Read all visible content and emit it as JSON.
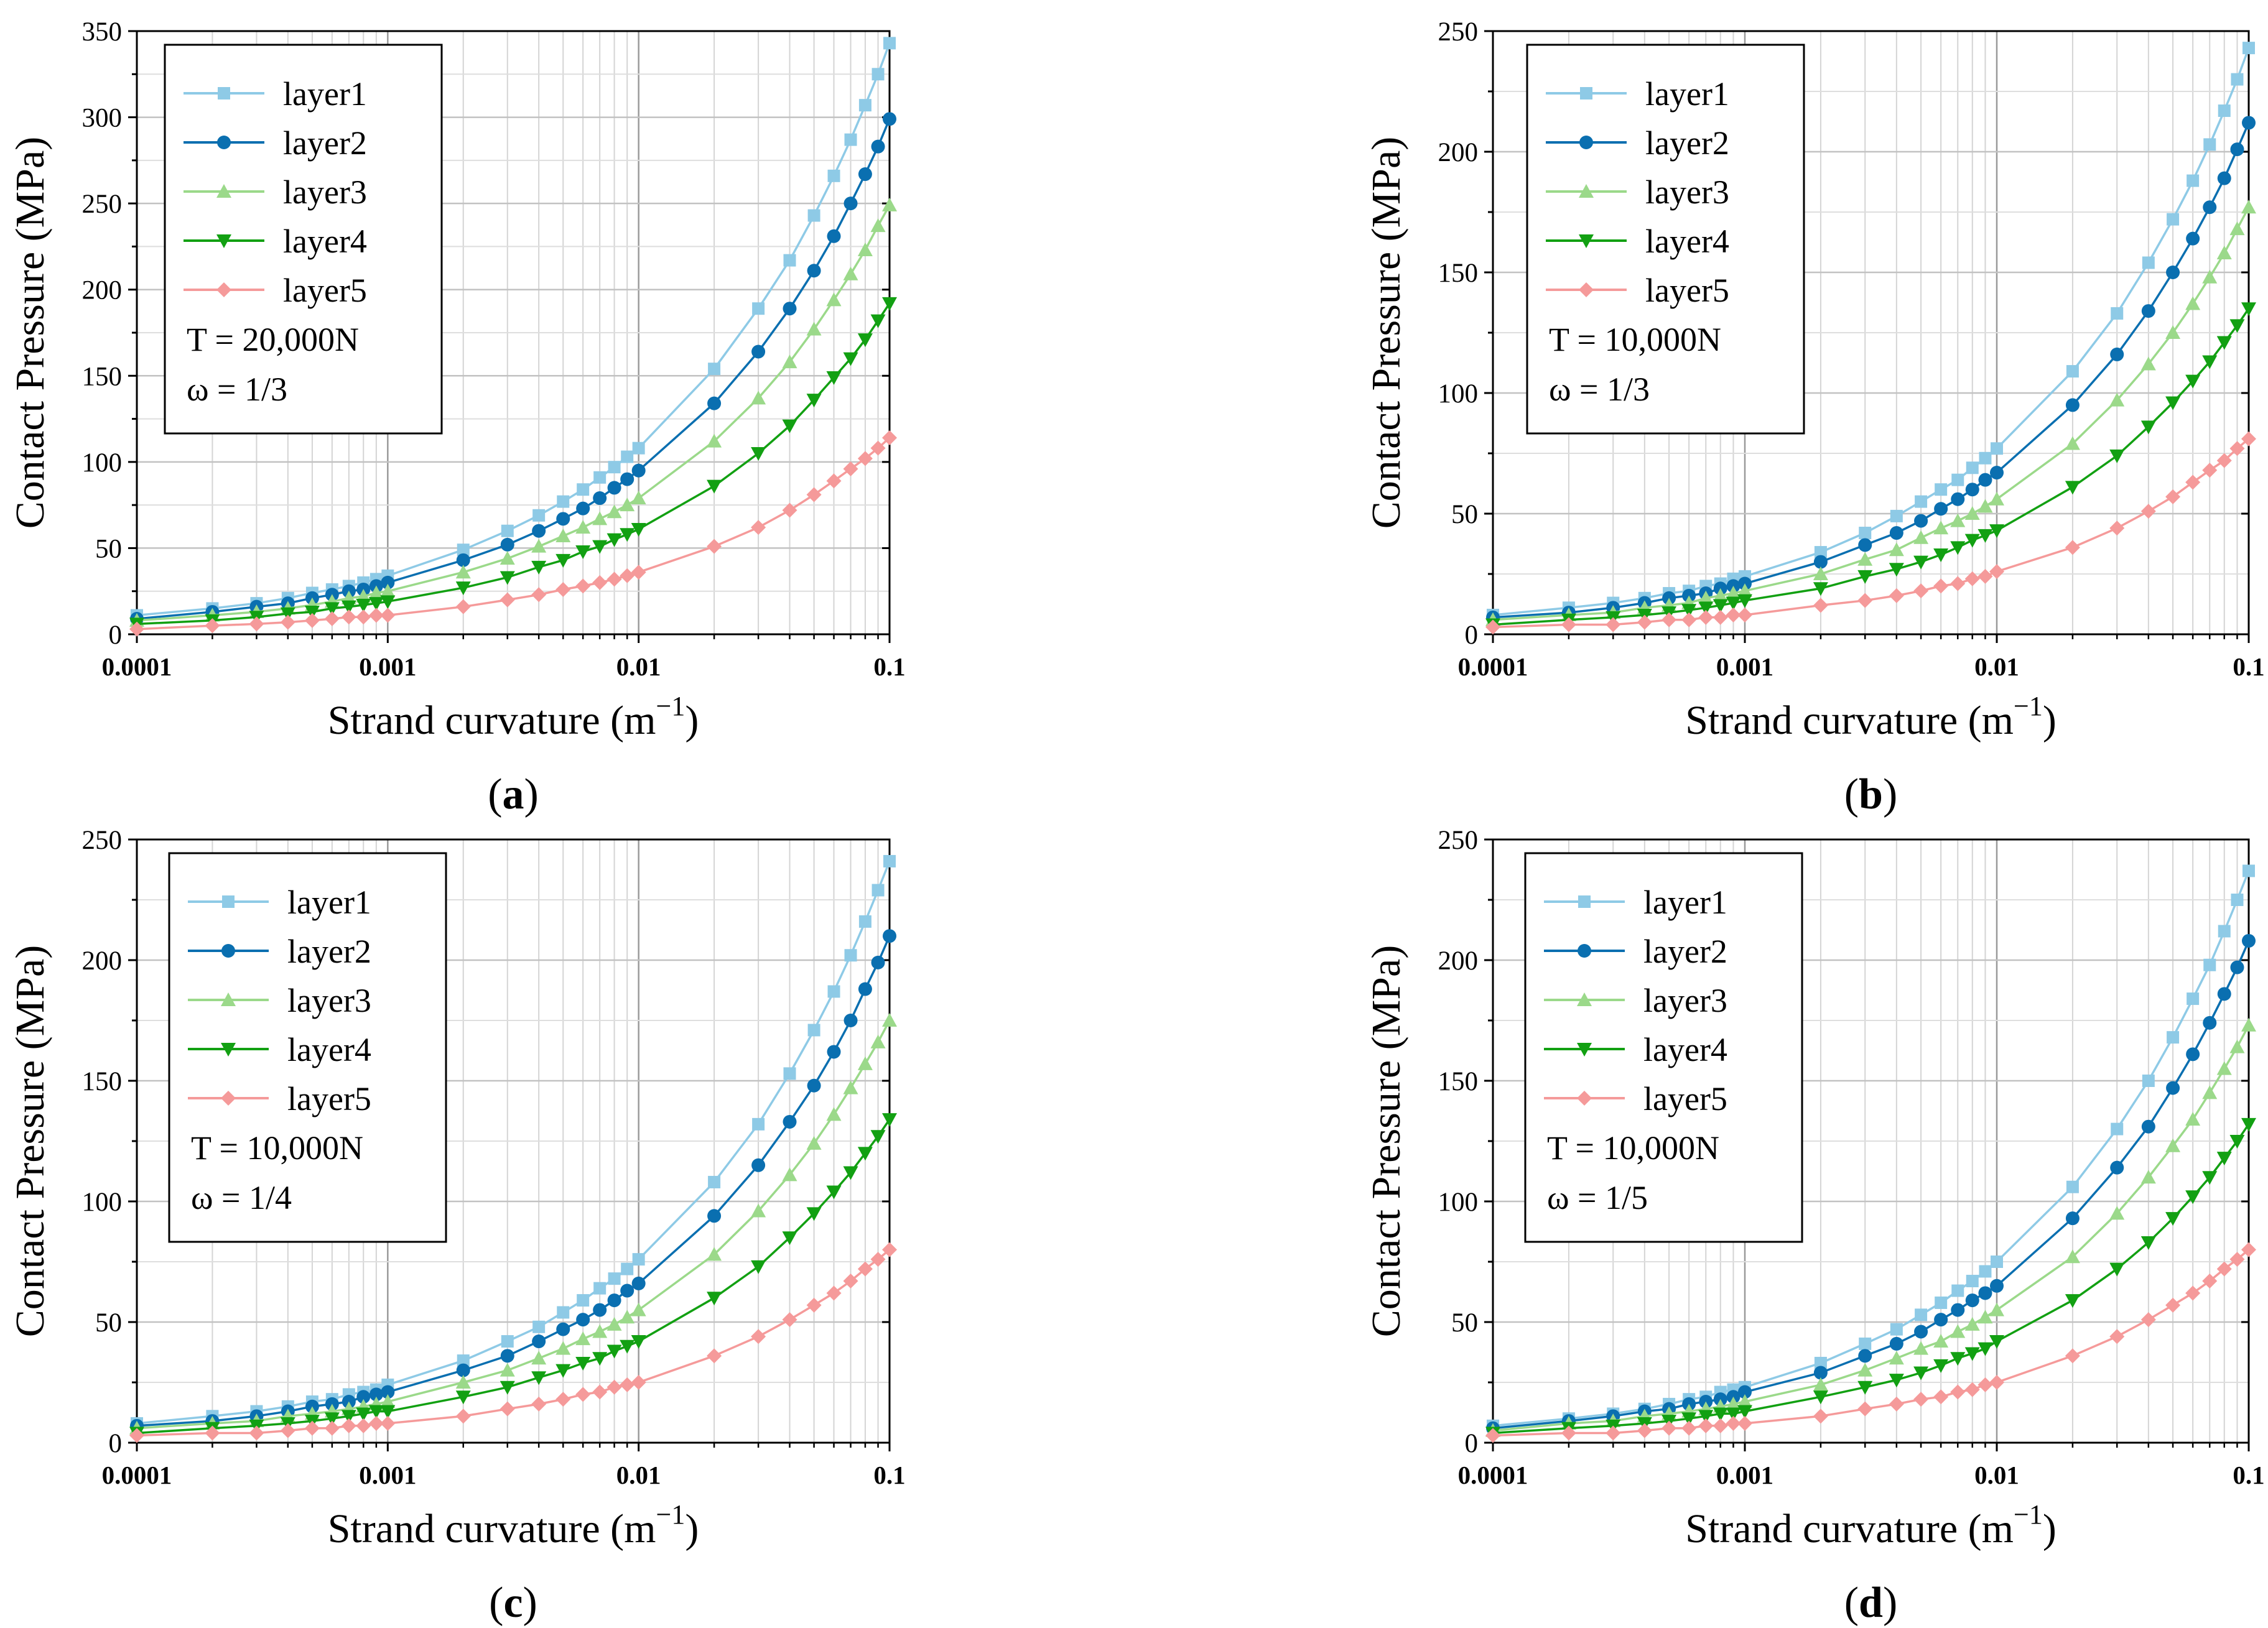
{
  "colors": {
    "layer1": "#8ecae6",
    "layer2": "#0a6fb0",
    "layer3": "#9bd98a",
    "layer4": "#12a012",
    "layer5": "#f59a9a"
  },
  "x_labels": [
    "0.0001",
    "0.001",
    "0.01",
    "0.1"
  ],
  "xlabel_text": "Strand curvature (m",
  "xlabel_sup": "−1",
  "xlabel_close": ")",
  "chart_data": [
    {
      "type": "line",
      "panel": "a",
      "xscale": "log",
      "xlim": [
        0.0001,
        0.1
      ],
      "ylim": [
        0,
        350
      ],
      "yticks": [
        0,
        50,
        100,
        150,
        200,
        250,
        300,
        350
      ],
      "ylabel": "Contact Pressure (MPa)",
      "annotations": [
        "T = 20,000N",
        "ω = 1/3"
      ],
      "x": [
        0.0001,
        0.0002,
        0.0003,
        0.0004,
        0.0005,
        0.0006,
        0.0007,
        0.0008,
        0.0009,
        0.001,
        0.002,
        0.003,
        0.004,
        0.005,
        0.006,
        0.007,
        0.008,
        0.009,
        0.01,
        0.02,
        0.03,
        0.04,
        0.05,
        0.06,
        0.07,
        0.08,
        0.09,
        0.1
      ],
      "series": [
        {
          "name": "layer1",
          "marker": "square",
          "values": [
            11,
            15,
            18,
            21,
            24,
            26,
            28,
            30,
            32,
            34,
            49,
            60,
            69,
            77,
            84,
            91,
            97,
            103,
            108,
            154,
            189,
            217,
            243,
            266,
            287,
            307,
            325,
            343
          ]
        },
        {
          "name": "layer2",
          "marker": "circle",
          "values": [
            9,
            13,
            16,
            18,
            21,
            23,
            25,
            26,
            28,
            30,
            43,
            52,
            60,
            67,
            73,
            79,
            85,
            90,
            95,
            134,
            164,
            189,
            211,
            231,
            250,
            267,
            283,
            299
          ]
        },
        {
          "name": "layer3",
          "marker": "triangle-up",
          "values": [
            8,
            11,
            13,
            15,
            17,
            19,
            21,
            22,
            24,
            25,
            36,
            44,
            51,
            57,
            62,
            67,
            71,
            75,
            79,
            112,
            137,
            158,
            177,
            194,
            209,
            223,
            237,
            249
          ]
        },
        {
          "name": "layer4",
          "marker": "triangle-down",
          "values": [
            6,
            8,
            10,
            12,
            13,
            15,
            16,
            17,
            18,
            19,
            27,
            33,
            39,
            43,
            48,
            51,
            55,
            58,
            61,
            86,
            105,
            121,
            136,
            149,
            160,
            171,
            182,
            192
          ]
        },
        {
          "name": "layer5",
          "marker": "diamond",
          "values": [
            3,
            5,
            6,
            7,
            8,
            9,
            10,
            10,
            11,
            11,
            16,
            20,
            23,
            26,
            28,
            30,
            32,
            34,
            36,
            51,
            62,
            72,
            81,
            89,
            96,
            102,
            108,
            114
          ]
        }
      ]
    },
    {
      "type": "line",
      "panel": "b",
      "xscale": "log",
      "xlim": [
        0.0001,
        0.1
      ],
      "ylim": [
        0,
        250
      ],
      "yticks": [
        0,
        50,
        100,
        150,
        200,
        250
      ],
      "ylabel": "Contact Pressure (MPa)",
      "annotations": [
        "T = 10,000N",
        "ω = 1/3"
      ],
      "x": [
        0.0001,
        0.0002,
        0.0003,
        0.0004,
        0.0005,
        0.0006,
        0.0007,
        0.0008,
        0.0009,
        0.001,
        0.002,
        0.003,
        0.004,
        0.005,
        0.006,
        0.007,
        0.008,
        0.009,
        0.01,
        0.02,
        0.03,
        0.04,
        0.05,
        0.06,
        0.07,
        0.08,
        0.09,
        0.1
      ],
      "series": [
        {
          "name": "layer1",
          "marker": "square",
          "values": [
            8,
            11,
            13,
            15,
            17,
            18,
            20,
            21,
            23,
            24,
            34,
            42,
            49,
            55,
            60,
            64,
            69,
            73,
            77,
            109,
            133,
            154,
            172,
            188,
            203,
            217,
            230,
            243
          ]
        },
        {
          "name": "layer2",
          "marker": "circle",
          "values": [
            7,
            9,
            11,
            13,
            15,
            16,
            17,
            19,
            20,
            21,
            30,
            37,
            42,
            47,
            52,
            56,
            60,
            64,
            67,
            95,
            116,
            134,
            150,
            164,
            177,
            189,
            201,
            212
          ]
        },
        {
          "name": "layer3",
          "marker": "triangle-up",
          "values": [
            6,
            8,
            9,
            11,
            12,
            13,
            15,
            16,
            17,
            18,
            25,
            31,
            35,
            40,
            44,
            47,
            50,
            53,
            56,
            79,
            97,
            112,
            125,
            137,
            148,
            158,
            168,
            177
          ]
        },
        {
          "name": "layer4",
          "marker": "triangle-down",
          "values": [
            4,
            6,
            7,
            8,
            9,
            10,
            11,
            12,
            13,
            14,
            19,
            24,
            27,
            30,
            33,
            36,
            39,
            41,
            43,
            61,
            74,
            86,
            96,
            105,
            113,
            121,
            128,
            135
          ]
        },
        {
          "name": "layer5",
          "marker": "diamond",
          "values": [
            3,
            4,
            4,
            5,
            6,
            6,
            7,
            7,
            8,
            8,
            12,
            14,
            16,
            18,
            20,
            21,
            23,
            24,
            26,
            36,
            44,
            51,
            57,
            63,
            68,
            72,
            77,
            81
          ]
        }
      ]
    },
    {
      "type": "line",
      "panel": "c",
      "xscale": "log",
      "xlim": [
        0.0001,
        0.1
      ],
      "ylim": [
        0,
        250
      ],
      "yticks": [
        0,
        50,
        100,
        150,
        200,
        250
      ],
      "ylabel": "Contact Pressure (MPa)",
      "annotations": [
        "T = 10,000N",
        "ω = 1/4"
      ],
      "x": [
        0.0001,
        0.0002,
        0.0003,
        0.0004,
        0.0005,
        0.0006,
        0.0007,
        0.0008,
        0.0009,
        0.001,
        0.002,
        0.003,
        0.004,
        0.005,
        0.006,
        0.007,
        0.008,
        0.009,
        0.01,
        0.02,
        0.03,
        0.04,
        0.05,
        0.06,
        0.07,
        0.08,
        0.09,
        0.1
      ],
      "series": [
        {
          "name": "layer1",
          "marker": "square",
          "values": [
            8,
            11,
            13,
            15,
            17,
            18,
            20,
            21,
            22,
            24,
            34,
            42,
            48,
            54,
            59,
            64,
            68,
            72,
            76,
            108,
            132,
            153,
            171,
            187,
            202,
            216,
            229,
            241
          ]
        },
        {
          "name": "layer2",
          "marker": "circle",
          "values": [
            7,
            9,
            11,
            13,
            15,
            16,
            17,
            19,
            20,
            21,
            30,
            36,
            42,
            47,
            51,
            55,
            59,
            63,
            66,
            94,
            115,
            133,
            148,
            162,
            175,
            188,
            199,
            210
          ]
        },
        {
          "name": "layer3",
          "marker": "triangle-up",
          "values": [
            6,
            8,
            9,
            11,
            12,
            13,
            14,
            15,
            16,
            17,
            25,
            30,
            35,
            39,
            43,
            46,
            49,
            52,
            55,
            78,
            96,
            111,
            124,
            136,
            147,
            157,
            166,
            175
          ]
        },
        {
          "name": "layer4",
          "marker": "triangle-down",
          "values": [
            4,
            6,
            7,
            8,
            9,
            10,
            11,
            12,
            13,
            13,
            19,
            23,
            27,
            30,
            33,
            35,
            38,
            40,
            42,
            60,
            73,
            85,
            95,
            104,
            112,
            120,
            127,
            134
          ]
        },
        {
          "name": "layer5",
          "marker": "diamond",
          "values": [
            3,
            4,
            4,
            5,
            6,
            6,
            7,
            7,
            8,
            8,
            11,
            14,
            16,
            18,
            20,
            21,
            23,
            24,
            25,
            36,
            44,
            51,
            57,
            62,
            67,
            72,
            76,
            80
          ]
        }
      ]
    },
    {
      "type": "line",
      "panel": "d",
      "xscale": "log",
      "xlim": [
        0.0001,
        0.1
      ],
      "ylim": [
        0,
        250
      ],
      "yticks": [
        0,
        50,
        100,
        150,
        200,
        250
      ],
      "ylabel": "Contact Pressure (MPa)",
      "annotations": [
        "T = 10,000N",
        "ω = 1/5"
      ],
      "x": [
        0.0001,
        0.0002,
        0.0003,
        0.0004,
        0.0005,
        0.0006,
        0.0007,
        0.0008,
        0.0009,
        0.001,
        0.002,
        0.003,
        0.004,
        0.005,
        0.006,
        0.007,
        0.008,
        0.009,
        0.01,
        0.02,
        0.03,
        0.04,
        0.05,
        0.06,
        0.07,
        0.08,
        0.09,
        0.1
      ],
      "series": [
        {
          "name": "layer1",
          "marker": "square",
          "values": [
            7,
            10,
            12,
            14,
            16,
            18,
            19,
            21,
            22,
            23,
            33,
            41,
            47,
            53,
            58,
            63,
            67,
            71,
            75,
            106,
            130,
            150,
            168,
            184,
            198,
            212,
            225,
            237
          ]
        },
        {
          "name": "layer2",
          "marker": "circle",
          "values": [
            6,
            9,
            11,
            13,
            14,
            16,
            17,
            18,
            19,
            21,
            29,
            36,
            41,
            46,
            51,
            55,
            59,
            62,
            65,
            93,
            114,
            131,
            147,
            161,
            174,
            186,
            197,
            208
          ]
        },
        {
          "name": "layer3",
          "marker": "triangle-up",
          "values": [
            5,
            8,
            9,
            11,
            12,
            13,
            14,
            15,
            16,
            17,
            24,
            30,
            35,
            39,
            42,
            46,
            49,
            52,
            55,
            77,
            95,
            110,
            123,
            134,
            145,
            155,
            164,
            173
          ]
        },
        {
          "name": "layer4",
          "marker": "triangle-down",
          "values": [
            4,
            6,
            7,
            8,
            9,
            10,
            11,
            12,
            12,
            13,
            19,
            23,
            26,
            29,
            32,
            35,
            37,
            39,
            42,
            59,
            72,
            83,
            93,
            102,
            110,
            118,
            125,
            132
          ]
        },
        {
          "name": "layer5",
          "marker": "diamond",
          "values": [
            3,
            4,
            4,
            5,
            6,
            6,
            7,
            7,
            8,
            8,
            11,
            14,
            16,
            18,
            19,
            21,
            22,
            24,
            25,
            36,
            44,
            51,
            57,
            62,
            67,
            72,
            76,
            80
          ]
        }
      ]
    }
  ],
  "panels": [
    {
      "caption": "a",
      "annotations": [
        "T = 20,000N",
        "ω = 1/3"
      ]
    },
    {
      "caption": "b",
      "annotations": [
        "T = 10,000N",
        "ω = 1/3"
      ]
    },
    {
      "caption": "c",
      "annotations": [
        "T = 10,000N",
        "ω = 1/4"
      ]
    },
    {
      "caption": "d",
      "annotations": [
        "T = 10,000N",
        "ω = 1/5"
      ]
    }
  ]
}
